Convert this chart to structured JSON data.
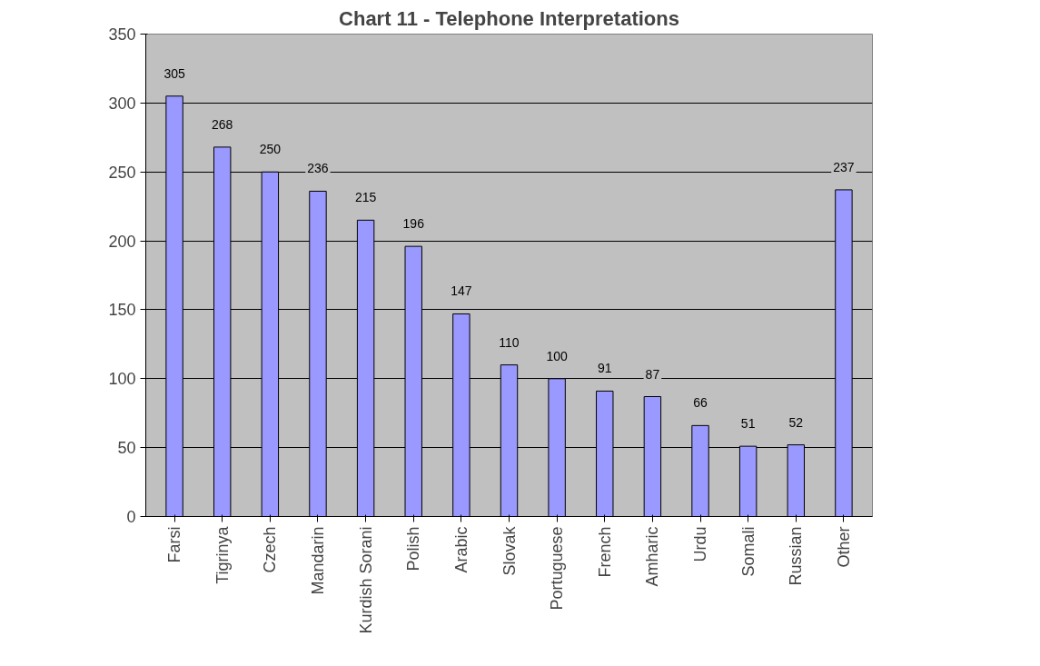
{
  "chart_data": {
    "type": "bar",
    "title": "Chart 11 - Telephone Interpretations",
    "categories": [
      "Farsi",
      "Tigrinya",
      "Czech",
      "Mandarin",
      "Kurdish Sorani",
      "Polish",
      "Arabic",
      "Slovak",
      "Portuguese",
      "French",
      "Amharic",
      "Urdu",
      "Somali",
      "Russian",
      "Other"
    ],
    "values": [
      305,
      268,
      250,
      236,
      215,
      196,
      147,
      110,
      100,
      91,
      87,
      66,
      51,
      52,
      237
    ],
    "color": "#9999ff",
    "data_labels": true,
    "ylim": [
      0,
      350
    ],
    "yticks": [
      0,
      50,
      100,
      150,
      200,
      250,
      300,
      350
    ],
    "grid": "y"
  }
}
